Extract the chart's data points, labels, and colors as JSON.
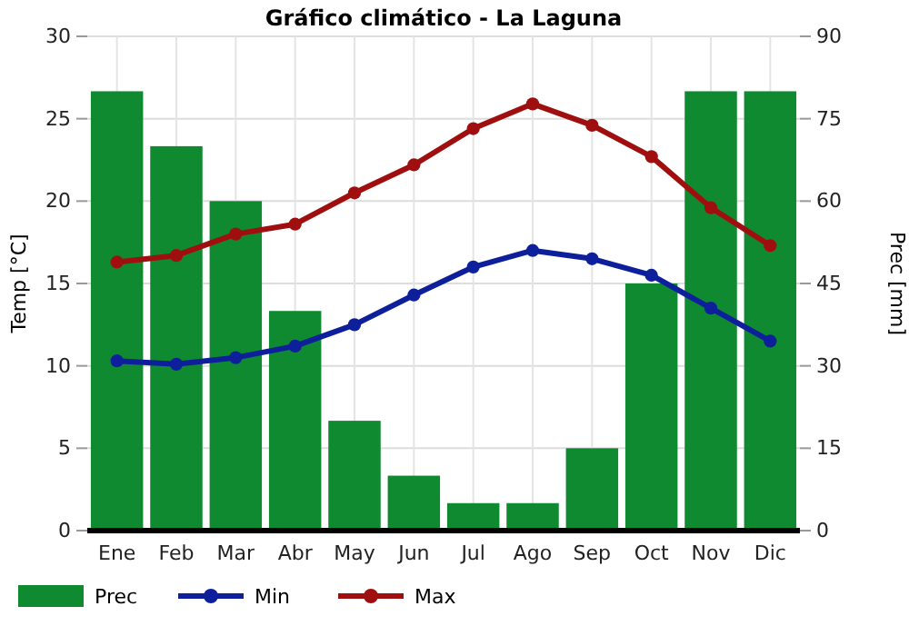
{
  "chart_data": {
    "type": "line",
    "title": "Gráfico climático - La Laguna",
    "ylabel": "Temp [°C]",
    "y2label": "Prec [mm]",
    "categories": [
      "Ene",
      "Feb",
      "Mar",
      "Abr",
      "May",
      "Jun",
      "Jul",
      "Ago",
      "Sep",
      "Oct",
      "Nov",
      "Dic"
    ],
    "series": [
      {
        "name": "Prec",
        "type": "bar",
        "axis": "y2",
        "color": "#108a30",
        "values": [
          80,
          70,
          60,
          40,
          20,
          10,
          5,
          5,
          15,
          45,
          80,
          80
        ]
      },
      {
        "name": "Min",
        "color": "#0d1f9a",
        "values": [
          10.3,
          10.1,
          10.5,
          11.2,
          12.5,
          14.3,
          16.0,
          17.0,
          16.5,
          15.5,
          13.5,
          11.5
        ]
      },
      {
        "name": "Max",
        "color": "#a00f10",
        "values": [
          16.3,
          16.7,
          18.0,
          18.6,
          20.5,
          22.2,
          24.4,
          25.9,
          24.6,
          22.7,
          19.6,
          17.3
        ]
      }
    ],
    "ylim": [
      0,
      30
    ],
    "yticks": [
      0,
      5,
      10,
      15,
      20,
      25,
      30
    ],
    "y2lim": [
      0,
      90
    ],
    "y2ticks": [
      0,
      15,
      30,
      45,
      60,
      75,
      90
    ],
    "grid": true,
    "legend": "bottom",
    "marker": "circle",
    "line_style": "solid"
  }
}
